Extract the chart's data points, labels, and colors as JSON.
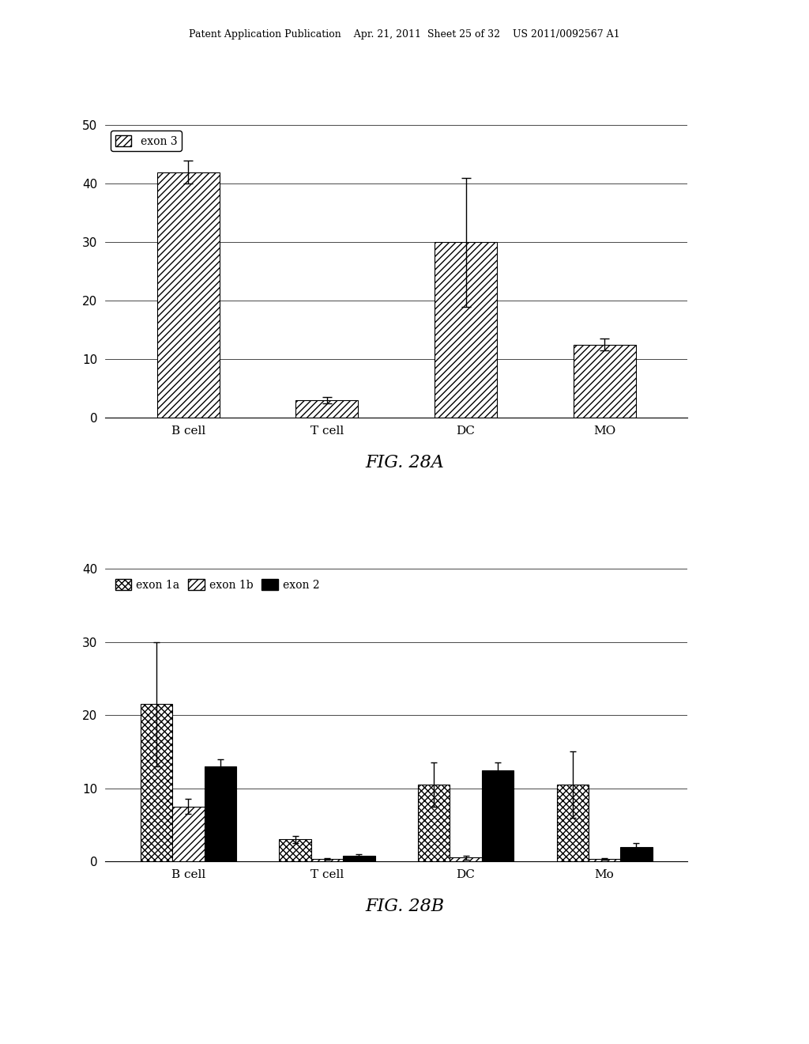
{
  "fig28a": {
    "categories": [
      "B cell",
      "T cell",
      "DC",
      "MO"
    ],
    "values": [
      42,
      3,
      30,
      12.5
    ],
    "errors": [
      2,
      0.5,
      11,
      1
    ],
    "ylim": [
      0,
      50
    ],
    "yticks": [
      0,
      10,
      20,
      30,
      40,
      50
    ],
    "legend_label": "exon 3",
    "figcaption": "FIG. 28A"
  },
  "fig28b": {
    "categories": [
      "B cell",
      "T cell",
      "DC",
      "Mo"
    ],
    "series": {
      "exon 1a": [
        21.5,
        3,
        10.5,
        10.5
      ],
      "exon 1b": [
        7.5,
        0.3,
        0.5,
        0.3
      ],
      "exon 2": [
        13,
        0.8,
        12.5,
        2
      ]
    },
    "errors": {
      "exon 1a": [
        8.5,
        0.5,
        3,
        4.5
      ],
      "exon 1b": [
        1,
        0.1,
        0.3,
        0.1
      ],
      "exon 2": [
        1,
        0.2,
        1,
        0.5
      ]
    },
    "ylim": [
      0,
      40
    ],
    "yticks": [
      0,
      10,
      20,
      30,
      40
    ],
    "figcaption": "FIG. 28B"
  },
  "background_color": "#ffffff",
  "header_text": "Patent Application Publication    Apr. 21, 2011  Sheet 25 of 32    US 2011/0092567 A1"
}
